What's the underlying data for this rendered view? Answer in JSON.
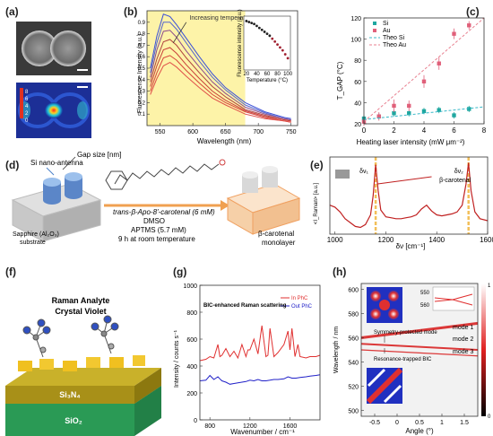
{
  "panel_labels": [
    "(a)",
    "(b)",
    "(c)",
    "(d)",
    "(e)",
    "(f)",
    "(g)",
    "(h)"
  ],
  "panel_a": {
    "colorbar_ticks": [
      "8",
      "6",
      "4",
      "2",
      "0"
    ]
  },
  "panel_d": {
    "gap_label": "Gap size [nm]",
    "antenna_label": "Si nano-antenna",
    "substrate_label_1": "Sapphire (Al₂O₃)",
    "substrate_label_2": "substrate",
    "reagent_line1": "trans-β-Apo-8'-carotenal (6 mM)",
    "reagent_line2": "DMSO",
    "reagent_line3": "APTMS (5.7 mM)",
    "reagent_line4": "9 h at room temperature",
    "product_label_1": "β-carotenal",
    "product_label_2": "monolayer"
  },
  "panel_f": {
    "title_1": "Raman Analyte",
    "title_2": "Crystal Violet",
    "layer_1": "Si₃N₄",
    "layer_2": "SiO₂"
  },
  "panel_h": {
    "annot_1": "Symmetry-protected mode",
    "annot_2": "Resonance-trapped BIC",
    "mode_labels": [
      "mode 1",
      "mode 2",
      "mode 3"
    ],
    "colorbar_ticks": [
      "1",
      "0"
    ]
  },
  "chart_data": [
    {
      "id": "b",
      "type": "line",
      "xlabel": "Wavelength (nm)",
      "ylabel": "Fluorescense Intensity (a.u.)",
      "xlim": [
        530,
        760
      ],
      "ylim": [
        0,
        1.0
      ],
      "xticks": [
        550,
        600,
        650,
        700,
        750
      ],
      "yticks": [
        0.1,
        0.2,
        0.3,
        0.4,
        0.5,
        0.6,
        0.7,
        0.8,
        0.9
      ],
      "annotation": "Increasing temperature",
      "shaded_region": [
        530,
        680
      ],
      "series": [
        {
          "color": "#3a4fd8",
          "x": [
            535,
            545,
            555,
            565,
            575,
            590,
            610,
            630,
            650,
            680,
            710,
            740,
            750
          ],
          "y": [
            0.5,
            0.78,
            0.97,
            0.95,
            0.88,
            0.76,
            0.6,
            0.45,
            0.33,
            0.2,
            0.12,
            0.07,
            0.06
          ]
        },
        {
          "color": "#5566cc",
          "x": [
            535,
            545,
            555,
            565,
            575,
            590,
            610,
            630,
            650,
            680,
            710,
            740,
            750
          ],
          "y": [
            0.46,
            0.72,
            0.9,
            0.9,
            0.84,
            0.72,
            0.56,
            0.42,
            0.31,
            0.18,
            0.11,
            0.06,
            0.05
          ]
        },
        {
          "color": "#8c4a8a",
          "x": [
            535,
            545,
            555,
            565,
            575,
            590,
            610,
            630,
            650,
            680,
            710,
            740,
            750
          ],
          "y": [
            0.42,
            0.66,
            0.82,
            0.83,
            0.77,
            0.65,
            0.51,
            0.38,
            0.28,
            0.16,
            0.1,
            0.06,
            0.05
          ]
        },
        {
          "color": "#b0433f",
          "x": [
            535,
            545,
            555,
            565,
            575,
            590,
            610,
            630,
            650,
            680,
            710,
            740,
            750
          ],
          "y": [
            0.38,
            0.58,
            0.73,
            0.75,
            0.7,
            0.59,
            0.46,
            0.34,
            0.25,
            0.14,
            0.09,
            0.05,
            0.04
          ]
        },
        {
          "color": "#c8403a",
          "x": [
            535,
            545,
            555,
            565,
            575,
            590,
            610,
            630,
            650,
            680,
            710,
            740,
            750
          ],
          "y": [
            0.34,
            0.52,
            0.66,
            0.68,
            0.63,
            0.53,
            0.41,
            0.3,
            0.22,
            0.13,
            0.08,
            0.05,
            0.04
          ]
        },
        {
          "color": "#d6453c",
          "x": [
            535,
            545,
            555,
            565,
            575,
            590,
            610,
            630,
            650,
            680,
            710,
            740,
            750
          ],
          "y": [
            0.3,
            0.46,
            0.59,
            0.61,
            0.57,
            0.48,
            0.37,
            0.27,
            0.2,
            0.12,
            0.07,
            0.04,
            0.03
          ]
        },
        {
          "color": "#e0504a",
          "x": [
            535,
            545,
            555,
            565,
            575,
            590,
            610,
            630,
            650,
            680,
            710,
            740,
            750
          ],
          "y": [
            0.27,
            0.41,
            0.52,
            0.55,
            0.51,
            0.43,
            0.33,
            0.24,
            0.18,
            0.1,
            0.06,
            0.04,
            0.03
          ]
        }
      ],
      "inset": {
        "xlabel": "Temperature (°C)",
        "ylabel": "Fluorescense intensity (a.u.)",
        "xlim": [
          15,
          105
        ],
        "ylim": [
          0.5,
          1.05
        ],
        "xticks": [
          20,
          40,
          60,
          80,
          100
        ],
        "x": [
          20,
          25,
          30,
          35,
          40,
          45,
          50,
          55,
          60,
          65,
          70,
          75,
          80,
          85,
          90,
          95,
          100
        ],
        "y": [
          1.0,
          0.99,
          0.98,
          0.97,
          0.95,
          0.93,
          0.91,
          0.89,
          0.87,
          0.85,
          0.82,
          0.79,
          0.76,
          0.73,
          0.7,
          0.66,
          0.62
        ]
      }
    },
    {
      "id": "c",
      "type": "scatter",
      "xlabel": "Heating laser intensity (mW μm⁻²)",
      "ylabel": "T_GAP (°C)",
      "xlim": [
        0,
        8
      ],
      "ylim": [
        20,
        120
      ],
      "xticks": [
        0,
        2,
        4,
        6,
        8
      ],
      "yticks": [
        20,
        40,
        60,
        80,
        100,
        120
      ],
      "series": [
        {
          "name": "Si",
          "color": "#1fa7a0",
          "x": [
            0,
            1,
            2,
            3,
            4,
            5,
            6,
            7
          ],
          "y": [
            25,
            27,
            30,
            30,
            32,
            33,
            28,
            34
          ],
          "err": [
            3,
            3,
            3,
            3,
            3,
            3,
            3,
            3
          ]
        },
        {
          "name": "Au",
          "color": "#e0607a",
          "x": [
            0,
            1,
            2,
            3,
            4,
            5,
            6,
            7
          ],
          "y": [
            22,
            27,
            37,
            37,
            60,
            77,
            105,
            113
          ],
          "err": [
            4,
            4,
            6,
            5,
            6,
            6,
            5,
            4
          ]
        },
        {
          "name": "Theo Si",
          "color": "#38b8c8",
          "dashed": true,
          "x": [
            0,
            8
          ],
          "y": [
            24,
            36
          ]
        },
        {
          "name": "Theo Au",
          "color": "#e88090",
          "dashed": true,
          "x": [
            0,
            8
          ],
          "y": [
            22,
            128
          ]
        }
      ]
    },
    {
      "id": "e",
      "type": "line",
      "xlabel": "δν [cm⁻¹]",
      "ylabel": "<I_Raman> [a.u.]",
      "xlim": [
        980,
        1600
      ],
      "xticks": [
        1000,
        1200,
        1400,
        1600
      ],
      "peaks": [
        {
          "x": 1160,
          "label": "δν₁"
        },
        {
          "x": 1525,
          "label": "δν₂"
        }
      ],
      "peak_annotation": "β-carotenal",
      "x": [
        980,
        1000,
        1020,
        1040,
        1060,
        1080,
        1100,
        1120,
        1140,
        1150,
        1160,
        1170,
        1180,
        1200,
        1220,
        1240,
        1260,
        1280,
        1300,
        1320,
        1340,
        1360,
        1380,
        1400,
        1420,
        1440,
        1460,
        1480,
        1500,
        1515,
        1525,
        1535,
        1550,
        1570,
        1600
      ],
      "y": [
        0.4,
        0.38,
        0.33,
        0.26,
        0.22,
        0.18,
        0.17,
        0.2,
        0.3,
        0.5,
        0.82,
        0.55,
        0.35,
        0.28,
        0.27,
        0.26,
        0.26,
        0.27,
        0.28,
        0.3,
        0.36,
        0.4,
        0.34,
        0.3,
        0.29,
        0.3,
        0.31,
        0.33,
        0.4,
        0.62,
        0.84,
        0.55,
        0.33,
        0.26,
        0.24
      ]
    },
    {
      "id": "g",
      "type": "line",
      "title": "BIC-enhanced Raman scattering",
      "xlabel": "Wavenumber / cm⁻¹",
      "ylabel": "Intensity / counts s⁻¹",
      "xlim": [
        700,
        1900
      ],
      "ylim": [
        0,
        1000
      ],
      "xticks": [
        800,
        1200,
        1600
      ],
      "yticks": [
        0,
        200,
        400,
        600,
        800,
        1000
      ],
      "series": [
        {
          "name": "In PhC",
          "color": "#e03030",
          "x": [
            700,
            760,
            800,
            840,
            880,
            900,
            920,
            960,
            1000,
            1040,
            1080,
            1120,
            1160,
            1180,
            1200,
            1240,
            1280,
            1320,
            1360,
            1380,
            1400,
            1440,
            1480,
            1540,
            1580,
            1600,
            1620,
            1650,
            1680,
            1700,
            1760,
            1800,
            1860,
            1900
          ],
          "y": [
            440,
            450,
            470,
            460,
            560,
            470,
            480,
            530,
            470,
            510,
            460,
            560,
            470,
            520,
            520,
            600,
            490,
            700,
            470,
            480,
            680,
            470,
            500,
            560,
            660,
            520,
            680,
            470,
            560,
            470,
            460,
            470,
            470,
            480
          ]
        },
        {
          "name": "Out PhC",
          "color": "#2020c8",
          "x": [
            700,
            760,
            800,
            840,
            880,
            900,
            920,
            960,
            1000,
            1040,
            1080,
            1120,
            1160,
            1200,
            1240,
            1280,
            1320,
            1360,
            1400,
            1440,
            1480,
            1540,
            1580,
            1620,
            1660,
            1700,
            1760,
            1800,
            1860,
            1900
          ],
          "y": [
            290,
            295,
            330,
            300,
            320,
            305,
            290,
            280,
            265,
            270,
            275,
            280,
            285,
            295,
            290,
            300,
            290,
            290,
            295,
            300,
            300,
            305,
            320,
            310,
            310,
            315,
            320,
            325,
            330,
            335
          ]
        }
      ]
    },
    {
      "id": "h",
      "type": "heatmap",
      "xlabel": "Angle (°)",
      "ylabel": "Wavelength / nm",
      "xlim": [
        -0.8,
        1.8
      ],
      "ylim": [
        495,
        605
      ],
      "xticks": [
        -0.5,
        0,
        0.5,
        1,
        1.5
      ],
      "yticks": [
        500,
        520,
        540,
        560,
        580,
        600
      ],
      "inset": {
        "yticks": [
          550,
          560
        ]
      },
      "modes": [
        {
          "label": "mode 1",
          "x": [
            -0.8,
            1.8
          ],
          "y": [
            560,
            572
          ]
        },
        {
          "label": "mode 2",
          "x": [
            -0.8,
            1.8
          ],
          "y": [
            555,
            550
          ]
        },
        {
          "label": "mode 3",
          "x": [
            -0.8,
            1.8
          ],
          "y": [
            550,
            545
          ]
        }
      ]
    }
  ]
}
